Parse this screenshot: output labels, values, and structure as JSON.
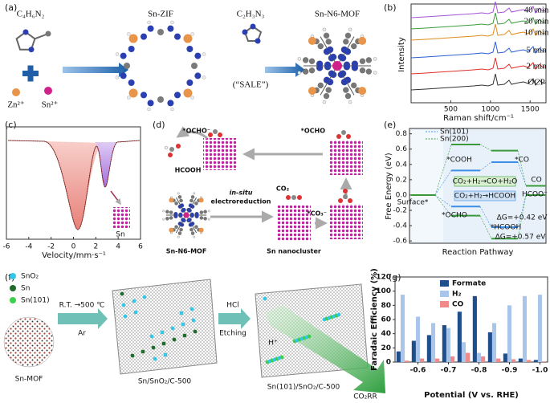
{
  "panel_labels": [
    "(a)",
    "(b)",
    "(c)",
    "(d)",
    "(e)",
    "(f)",
    "(g)"
  ],
  "a": {
    "ligand_1": "C₄H₆N₂",
    "framework": "Sn-ZIF",
    "ligand_2": "C₂H₃N₃",
    "product": "Sn-N6-MOF",
    "ion_1": "Zn²⁺",
    "ion_2": "Sn²⁺",
    "process": "(“SALE”)"
  },
  "d": {
    "intermediate_1": "*OCHO⁻",
    "intermediate_2": "*OCHO",
    "intermediate_3": "*CO₃⁻",
    "product": "HCOOH",
    "reactant": "CO₂",
    "process_1": "in-situ",
    "process_2": "electroreduction",
    "start": "Sn-N6-MOF",
    "cluster": "Sn nanocluster"
  },
  "f": {
    "legend": [
      "SnO₂",
      "Sn",
      "Sn(101)"
    ],
    "step_1_top": "R.T. →500 ℃",
    "step_1_bottom": "Ar",
    "step_2_top": "HCl",
    "step_2_bottom": "Etching",
    "stages": [
      "Sn-MOF",
      "Sn/SnO₂/C-500",
      "Sn(101)/SnO₂/C-500"
    ],
    "proton": "H⁺",
    "reaction": "CO₂RR"
  },
  "chart_data": [
    {
      "type": "line",
      "ylabel": "Intensity",
      "xlabel": "Raman shift/cm⁻¹",
      "xlim": [
        0,
        1700
      ],
      "xticks": [
        500,
        1000,
        1500
      ],
      "annotations": [
        "40 min",
        "20 min",
        "10 min",
        "5 min",
        "2 min",
        "OCP"
      ],
      "annotation_colors": [
        "#a552d6",
        "#3d9b3d",
        "#e08b1e",
        "#2b5fd0",
        "#e0302a",
        "#333333"
      ]
    },
    {
      "type": "line",
      "xlabel": "Velocity/mm·s⁻¹",
      "xlim": [
        -6,
        6
      ],
      "xticks": [
        -6,
        -4,
        -2,
        0,
        2,
        4,
        6
      ],
      "annotations": [
        "Sn"
      ]
    },
    {
      "type": "energy-diagram",
      "ylabel": "Free Energy (eV)",
      "xlabel": "Reaction Pathway",
      "ylim": [
        -0.63,
        0.87
      ],
      "yticks": [
        0.8,
        0.6,
        0.4,
        0.2,
        {
          "value": 0,
          "label": "0.0"
        },
        -0.2,
        -0.4,
        -0.6
      ],
      "legend_loc": "upper left",
      "series": [
        {
          "name": "Sn(101)",
          "color": "#3a8ee6",
          "values": [
            0,
            0.32,
            0.43,
            0.12
          ],
          "values_formate": [
            0,
            -0.15,
            -0.42,
            0
          ]
        },
        {
          "name": "Sn(200)",
          "color": "#3a9a3a",
          "values": [
            0,
            0.66,
            0.58,
            0.12
          ],
          "values_formate": [
            0,
            -0.27,
            -0.57,
            0
          ]
        }
      ],
      "annotations": [
        "*COOH",
        "*CO",
        "CO₂+H₂→CO+H₂O",
        "CO₂+H₂→HCOOH",
        "Surface*",
        "*OCHO",
        "*HCOOH",
        "ΔG=+0.42 eV",
        "ΔG=+0.57 eV",
        "CO",
        "HCOO⁻"
      ]
    },
    {
      "type": "bar",
      "ylabel": "Faradaic Efficiency (%)",
      "xlabel": "Potential (V vs. RHE)",
      "categories": [
        null,
        "-0.6",
        null,
        "-0.7",
        null,
        "-0.8",
        null,
        "-0.9",
        null,
        "-1.0"
      ],
      "ylim": [
        0,
        120
      ],
      "yticks": [
        0,
        20,
        40,
        60,
        80,
        100,
        120
      ],
      "legend_loc": "upper center",
      "series": [
        {
          "name": "Formate",
          "color": "#1f4e8c",
          "values": [
            15,
            30,
            38,
            52,
            71,
            93,
            42,
            12,
            5,
            3
          ]
        },
        {
          "name": "H₂",
          "color": "#a9c6ea",
          "values": [
            95,
            64,
            55,
            48,
            28,
            13,
            55,
            80,
            93,
            95
          ]
        },
        {
          "name": "CO",
          "color": "#f08a8a",
          "values": [
            2,
            5,
            5,
            8,
            13,
            8,
            5,
            4,
            3,
            1
          ]
        }
      ]
    }
  ]
}
